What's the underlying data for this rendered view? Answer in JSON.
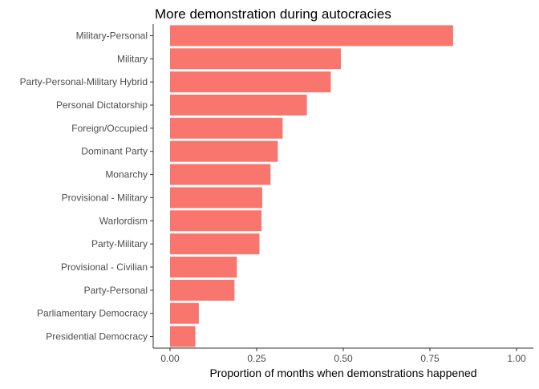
{
  "chart_data": {
    "type": "bar",
    "orientation": "horizontal",
    "title": "More demonstration during autocracies",
    "xlabel": "Proportion of months when demonstrations happened",
    "ylabel": "",
    "xlim": [
      0,
      1
    ],
    "xticks": [
      0.0,
      0.25,
      0.5,
      0.75,
      1.0
    ],
    "xtick_labels": [
      "0.00",
      "0.25",
      "0.50",
      "0.75",
      "1.00"
    ],
    "grid": false,
    "bar_color": "#F8766D",
    "categories": [
      "Military-Personal",
      "Military",
      "Party-Personal-Military Hybrid",
      "Personal Dictatorship",
      "Foreign/Occupied",
      "Dominant Party",
      "Monarchy",
      "Provisional - Military",
      "Warlordism",
      "Party-Military",
      "Provisional - Civilian",
      "Party-Personal",
      "Parliamentary Democracy",
      "Presidential Democracy"
    ],
    "values": [
      0.817,
      0.493,
      0.464,
      0.395,
      0.325,
      0.311,
      0.29,
      0.266,
      0.264,
      0.258,
      0.193,
      0.186,
      0.083,
      0.073
    ]
  }
}
